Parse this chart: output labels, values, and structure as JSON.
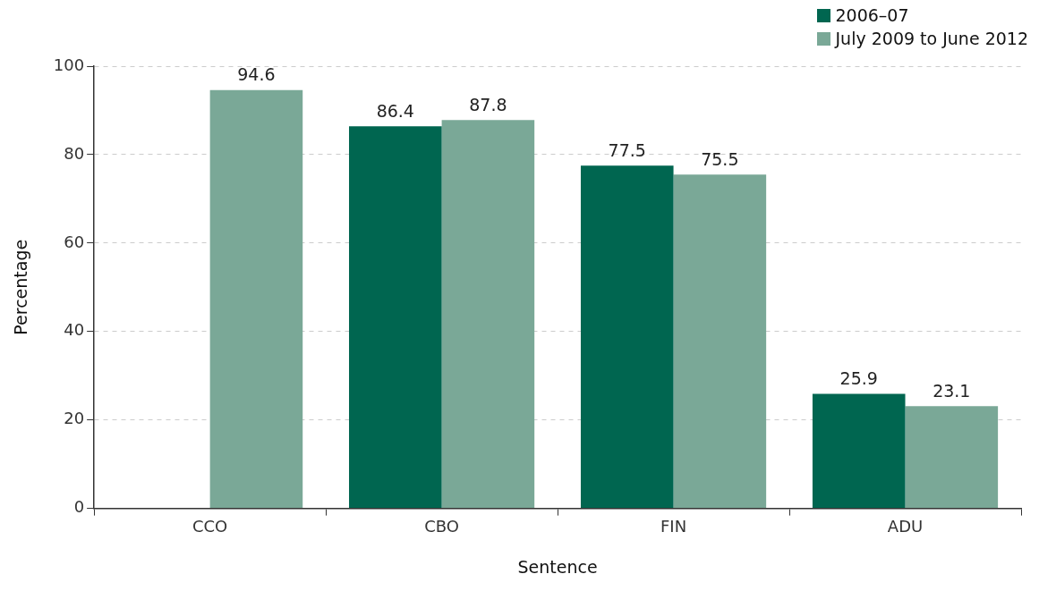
{
  "chart_data": {
    "type": "bar",
    "xlabel": "Sentence",
    "ylabel": "Percentage",
    "categories": [
      "CCO",
      "CBO",
      "FIN",
      "ADU"
    ],
    "series": [
      {
        "name": "2006–07",
        "color": "#006650",
        "values": [
          null,
          86.4,
          77.5,
          25.9
        ]
      },
      {
        "name": "July 2009 to June 2012",
        "color": "#7aa897",
        "values": [
          94.6,
          87.8,
          75.5,
          23.1
        ]
      }
    ],
    "ylim": [
      0,
      100
    ],
    "yticks": [
      0,
      20,
      40,
      60,
      80,
      100
    ],
    "grid": "y",
    "legend": "top right",
    "data_labels": true
  }
}
